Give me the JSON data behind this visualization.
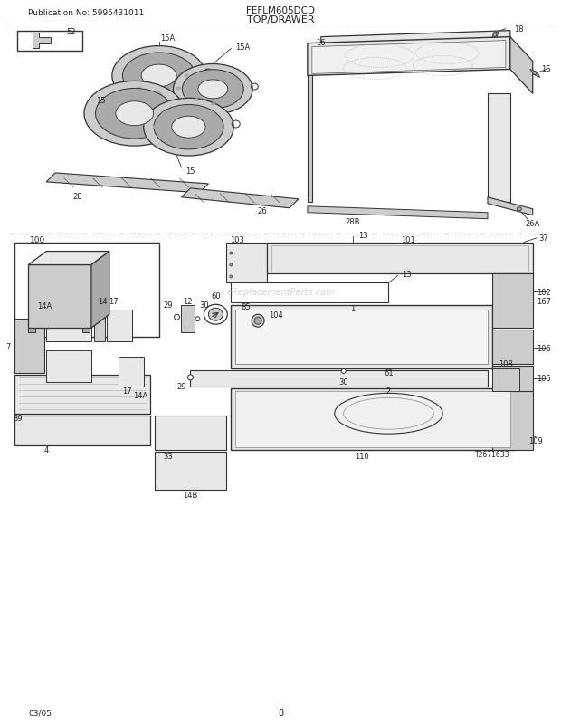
{
  "title_left": "Publication No: 5995431011",
  "title_center": "FEFLM605DCD",
  "title_section": "TOP/DRAWER",
  "footer_left": "03/05",
  "footer_center": "8",
  "bg_color": "#ffffff",
  "fig_width": 6.2,
  "fig_height": 8.03,
  "dpi": 100,
  "watermark": "eReplacementParts.com",
  "lc": "#333333",
  "fc_light": "#e8e8e8",
  "fc_mid": "#cccccc",
  "fc_dark": "#aaaaaa"
}
